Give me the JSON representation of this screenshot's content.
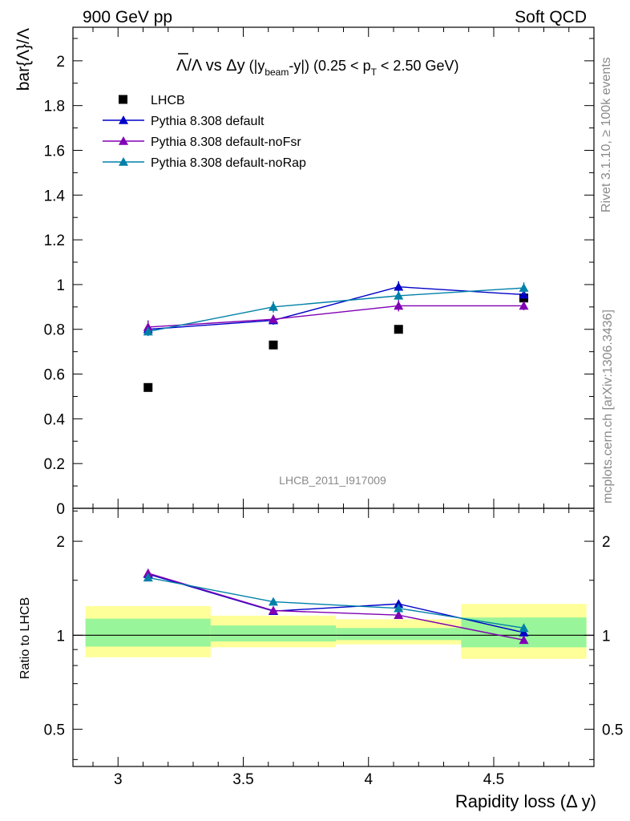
{
  "header": {
    "left": "900 GeV pp",
    "right": "Soft QCD"
  },
  "side_labels": {
    "rivet": "Rivet 3.1.10, ≥ 100k events",
    "mcplots": "mcplots.cern.ch [arXiv:1306.3436]"
  },
  "chart_data": [
    {
      "type": "scatter",
      "title": "Λ̅/Λ vs Δy (|y_beam-y|) (0.25 < p_T < 2.50 GeV)",
      "title_parts": {
        "main": "Λ/Λ vs Δy",
        "p1": " (|y",
        "beam": "beam",
        "p2": "-y|) (0.25 < p",
        "t": "T",
        "p3": " < 2.50 GeV)"
      },
      "ylabel": "bar{Λ}/Λ",
      "watermark": "LHCB_2011_I917009",
      "xlim": [
        2.82,
        4.9
      ],
      "ylim": [
        0,
        2.15
      ],
      "yticks": [
        0,
        0.2,
        0.4,
        0.6,
        0.8,
        1,
        1.2,
        1.4,
        1.6,
        1.8,
        2
      ],
      "ytick_labels": [
        "0",
        "0.2",
        "0.4",
        "0.6",
        "0.8",
        "1",
        "1.2",
        "1.4",
        "1.6",
        "1.8",
        "2"
      ],
      "x": [
        3.12,
        3.62,
        4.12,
        4.62
      ],
      "series": [
        {
          "name": "LHCB",
          "values": [
            0.54,
            0.73,
            0.8,
            0.94
          ],
          "color": "#000000",
          "marker": "square",
          "line": false
        },
        {
          "name": "Pythia 8.308 default",
          "values": [
            0.8,
            0.84,
            0.99,
            0.955
          ],
          "errors": [
            0.015,
            0.02,
            0.025,
            0.02
          ],
          "color": "#0000c8",
          "marker": "triangle",
          "line": true
        },
        {
          "name": "Pythia 8.308 default-noFsr",
          "values": [
            0.81,
            0.845,
            0.905,
            0.905
          ],
          "errors": [
            0.03,
            0.02,
            0.025,
            0.02
          ],
          "color": "#8000b4",
          "marker": "triangle",
          "line": true
        },
        {
          "name": "Pythia 8.308 default-noRap",
          "values": [
            0.79,
            0.9,
            0.95,
            0.985
          ],
          "errors": [
            0.02,
            0.025,
            0.02,
            0.025
          ],
          "color": "#0080a8",
          "marker": "triangle",
          "line": true
        }
      ]
    },
    {
      "type": "scatter",
      "ylabel": "Ratio to LHCB",
      "xlabel": "Rapidity loss (Δ y)",
      "xlim": [
        2.82,
        4.9
      ],
      "ylim": [
        0.38,
        2.55
      ],
      "log_y": true,
      "xticks": [
        3,
        3.5,
        4,
        4.5
      ],
      "xtick_labels": [
        "3",
        "3.5",
        "4",
        "4.5"
      ],
      "yticks": [
        0.5,
        1,
        2
      ],
      "ytick_labels": [
        "0.5",
        "1",
        "2"
      ],
      "x": [
        3.12,
        3.62,
        4.12,
        4.62
      ],
      "bands": [
        {
          "x0": 2.87,
          "x1": 3.37,
          "yellow": [
            0.85,
            1.24
          ],
          "green": [
            0.92,
            1.13
          ]
        },
        {
          "x0": 3.37,
          "x1": 3.87,
          "yellow": [
            0.915,
            1.155
          ],
          "green": [
            0.955,
            1.075
          ]
        },
        {
          "x0": 3.87,
          "x1": 4.37,
          "yellow": [
            0.935,
            1.125
          ],
          "green": [
            0.965,
            1.055
          ]
        },
        {
          "x0": 4.37,
          "x1": 4.87,
          "yellow": [
            0.84,
            1.26
          ],
          "green": [
            0.915,
            1.14
          ]
        }
      ],
      "series": [
        {
          "name": "Pythia 8.308 default",
          "values": [
            1.57,
            1.195,
            1.26,
            1.02
          ],
          "errors": [
            0.04,
            0.02,
            0.03,
            0.02
          ],
          "color": "#0000c8"
        },
        {
          "name": "Pythia 8.308 default-noFsr",
          "values": [
            1.58,
            1.2,
            1.16,
            0.965
          ],
          "errors": [
            0.05,
            0.025,
            0.03,
            0.02
          ],
          "color": "#8000b4"
        },
        {
          "name": "Pythia 8.308 default-noRap",
          "values": [
            1.53,
            1.28,
            1.22,
            1.055
          ],
          "errors": [
            0.04,
            0.03,
            0.03,
            0.03
          ],
          "color": "#0080a8"
        }
      ]
    }
  ]
}
